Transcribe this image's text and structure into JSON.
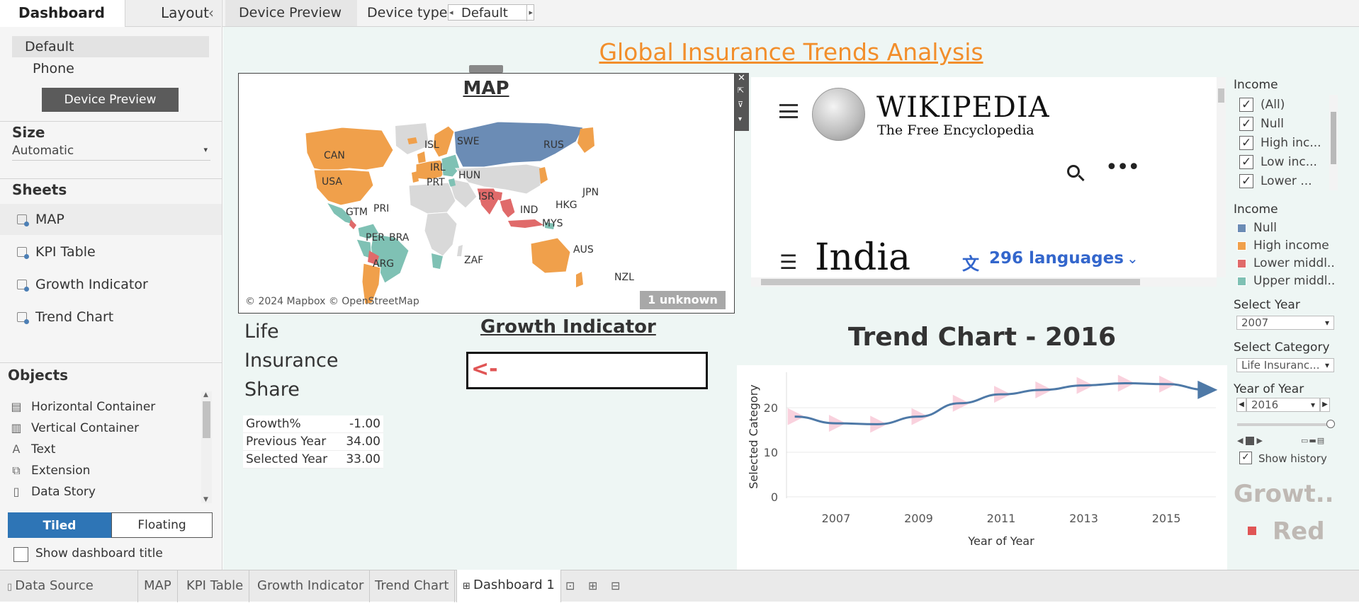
{
  "left_panel": {
    "tabs": {
      "dashboard": "Dashboard",
      "layout": "Layout",
      "collapse": "‹"
    },
    "devices": [
      "Default",
      "Phone"
    ],
    "device_preview_button": "Device Preview",
    "size": {
      "heading": "Size",
      "value": "Automatic"
    },
    "sheets": {
      "heading": "Sheets",
      "items": [
        "MAP",
        "KPI Table",
        "Growth Indicator",
        "Trend Chart"
      ]
    },
    "objects": {
      "heading": "Objects",
      "items": [
        {
          "label": "Horizontal Container",
          "icon": "horizontal-container-icon"
        },
        {
          "label": "Vertical Container",
          "icon": "vertical-container-icon"
        },
        {
          "label": "Text",
          "icon": "text-icon"
        },
        {
          "label": "Extension",
          "icon": "extension-icon"
        },
        {
          "label": "Data Story",
          "icon": "data-story-icon"
        }
      ],
      "tiled": "Tiled",
      "floating": "Floating"
    },
    "show_title": "Show dashboard title"
  },
  "toolbar": {
    "device_preview": "Device Preview",
    "device_type_label": "Device type",
    "device_type_value": "Default"
  },
  "dashboard": {
    "title": "Global Insurance Trends Analysis",
    "map": {
      "title": "MAP",
      "labels": [
        "CAN",
        "USA",
        "ISL",
        "SWE",
        "RUS",
        "IRL",
        "PRT",
        "HUN",
        "ISR",
        "JPN",
        "PRI",
        "GTM",
        "IND",
        "HKG",
        "MYS",
        "PER",
        "BRA",
        "ARG",
        "ZAF",
        "AUS",
        "NZL"
      ],
      "attribution": "© 2024 Mapbox © OpenStreetMap",
      "unknown": "1 unknown"
    },
    "wiki": {
      "logo_title": "WIKIPEDIA",
      "logo_subtitle": "The Free Encyclopedia",
      "article": "India",
      "languages": "296 languages"
    },
    "kpi": {
      "title_lines": [
        "Life",
        "Insurance",
        "Share"
      ],
      "rows": [
        {
          "label": "Growth%",
          "value": "-1.00"
        },
        {
          "label": "Previous Year",
          "value": "34.00"
        },
        {
          "label": "Selected Year",
          "value": "33.00"
        }
      ]
    },
    "growth": {
      "title": "Growth Indicator",
      "value": "<-"
    },
    "trend": {
      "title": "Trend Chart - 2016",
      "xlabel": "Year of Year",
      "ylabel": "Selected Category"
    },
    "filters": {
      "income_filter": {
        "title": "Income",
        "items": [
          "(All)",
          "Null",
          "High inc...",
          "Low inc...",
          "Lower ..."
        ]
      },
      "income_legend": {
        "title": "Income",
        "items": [
          {
            "label": "Null",
            "color": "#6b8cb5"
          },
          {
            "label": "High income",
            "color": "#f0a04b"
          },
          {
            "label": "Lower middl..",
            "color": "#e06a6a"
          },
          {
            "label": "Upper middl..",
            "color": "#7fc1b4"
          }
        ]
      },
      "select_year": {
        "title": "Select Year",
        "value": "2007"
      },
      "select_category": {
        "title": "Select Category",
        "value": "Life Insuranc..."
      },
      "year_of_year": {
        "title": "Year of Year",
        "value": "2016"
      },
      "show_history": "Show history",
      "growth_legend": {
        "title": "Growt..",
        "item": "Red",
        "color": "#e05555"
      }
    }
  },
  "chart_data": {
    "type": "line",
    "title": "Trend Chart - 2016",
    "xlabel": "Year of Year",
    "ylabel": "Selected Category",
    "x_ticks": [
      "2007",
      "2009",
      "2011",
      "2013",
      "2015"
    ],
    "y_ticks": [
      0,
      10,
      20
    ],
    "xlim": [
      2005.8,
      2016.2
    ],
    "ylim": [
      0,
      27
    ],
    "series": [
      {
        "x": [
          2006,
          2007,
          2008,
          2009,
          2010,
          2011,
          2012,
          2013,
          2014,
          2015,
          2016
        ],
        "y": [
          18,
          16.5,
          16.3,
          18,
          21,
          23,
          24,
          25,
          25.5,
          25.3,
          24
        ]
      }
    ],
    "history_x": [
      2006,
      2007,
      2008,
      2009,
      2010,
      2011,
      2012,
      2013,
      2014,
      2015
    ],
    "color": "#4e79a7",
    "history_color": "#f7c5d5"
  },
  "bottom_tabs": {
    "data_source": "Data Source",
    "tabs": [
      "MAP",
      "KPI Table",
      "Growth Indicator",
      "Trend Chart"
    ],
    "active": "Dashboard 1"
  }
}
